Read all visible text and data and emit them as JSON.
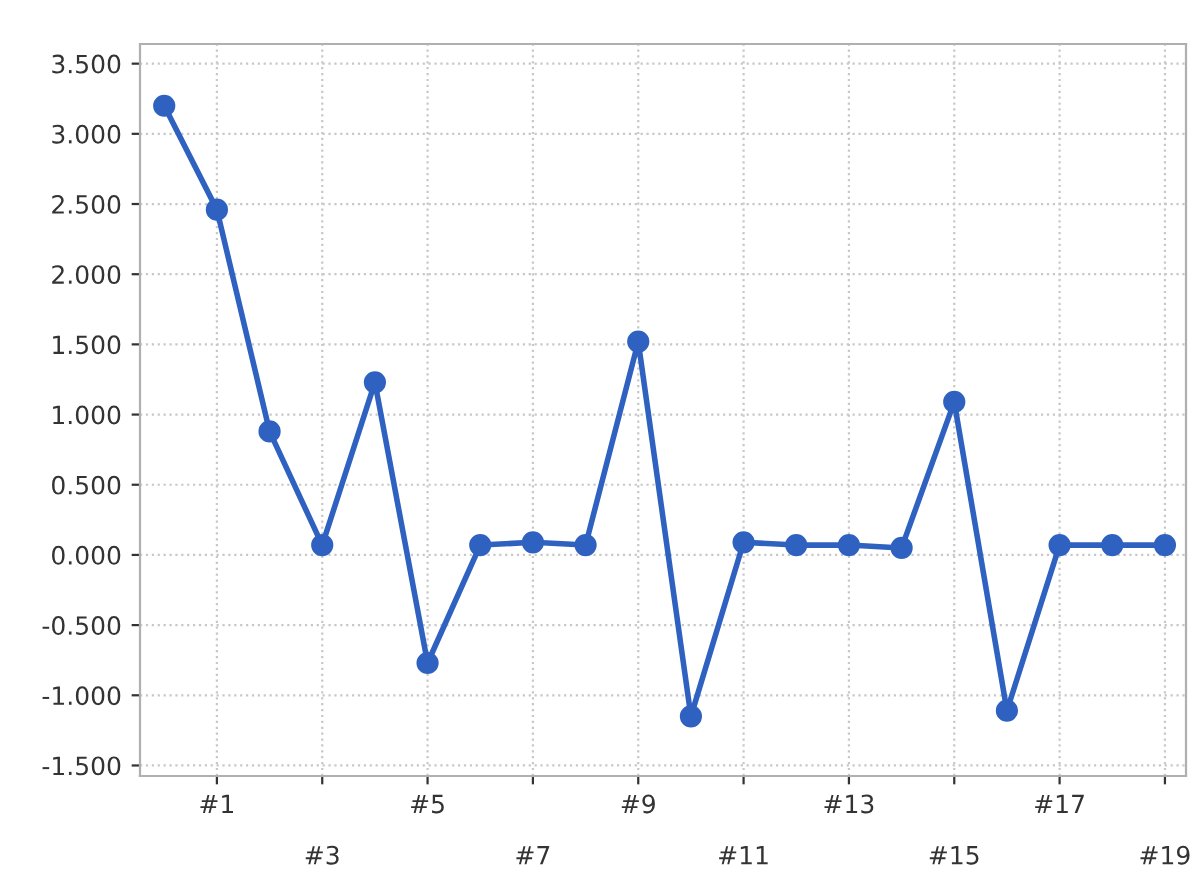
{
  "chart_data": {
    "type": "line",
    "categories": [
      null,
      "#1",
      null,
      "#3",
      null,
      "#5",
      null,
      "#7",
      null,
      "#9",
      null,
      "#11",
      null,
      "#13",
      null,
      "#15",
      null,
      "#17",
      null,
      "#19"
    ],
    "series": [
      {
        "color": "#2f62c0",
        "values": [
          3.2,
          2.46,
          0.88,
          0.07,
          1.23,
          -0.77,
          0.07,
          0.09,
          0.07,
          1.52,
          -1.15,
          0.09,
          0.07,
          0.07,
          0.05,
          1.09,
          -1.11,
          0.07,
          0.07,
          0.07
        ]
      }
    ],
    "ylim": [
      -1.575,
      3.64
    ],
    "yticks": [
      {
        "value": -1.5,
        "label": "-1.500"
      },
      {
        "value": -1,
        "label": "-1.000"
      },
      {
        "value": -0.5,
        "label": "-0.500"
      },
      {
        "value": 0,
        "label": "0.000"
      },
      {
        "value": 0.5,
        "label": "0.500"
      },
      {
        "value": 1,
        "label": "1.000"
      },
      {
        "value": 1.5,
        "label": "1.500"
      },
      {
        "value": 2,
        "label": "2.000"
      },
      {
        "value": 2.5,
        "label": "2.500"
      },
      {
        "value": 3,
        "label": "3.000"
      },
      {
        "value": 3.5,
        "label": "3.500"
      }
    ],
    "grid": true,
    "marker": "circle",
    "line_style": "solid"
  }
}
